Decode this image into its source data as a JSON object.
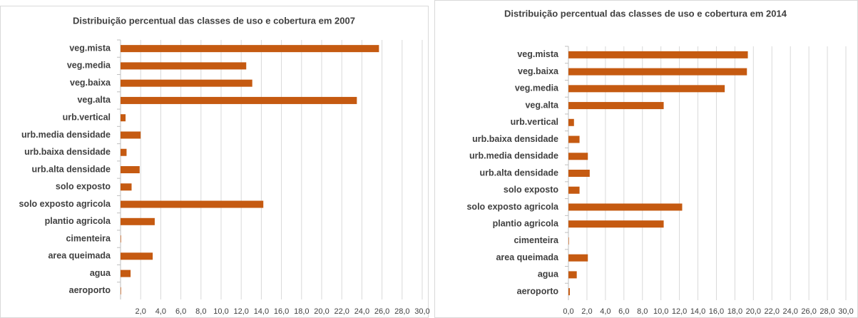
{
  "chart_data": [
    {
      "type": "bar",
      "title": "Distribuição percentual das classes de uso e cobertura em 2007",
      "categories": [
        "veg.mista",
        "veg.media",
        "veg.baixa",
        "veg.alta",
        "urb.vertical",
        "urb.media densidade",
        "urb.baixa densidade",
        "urb.alta densidade",
        "solo exposto",
        "solo exposto agricola",
        "plantio agricola",
        "cimenteira",
        "area queimada",
        "agua",
        "aeroporto"
      ],
      "values": [
        25.7,
        12.5,
        13.1,
        23.5,
        0.5,
        2.0,
        0.6,
        1.9,
        1.1,
        14.2,
        3.4,
        0.05,
        3.2,
        1.0,
        0.05
      ],
      "color": "#c55a11",
      "orientation": "horizontal",
      "grid": true,
      "xlim": [
        0,
        30
      ],
      "xticks": [
        {
          "value": 2,
          "label": "2,0"
        },
        {
          "value": 4,
          "label": "4,0"
        },
        {
          "value": 6,
          "label": "6,0"
        },
        {
          "value": 8,
          "label": "8,0"
        },
        {
          "value": 10,
          "label": "10,0"
        },
        {
          "value": 12,
          "label": "12,0"
        },
        {
          "value": 14,
          "label": "14,0"
        },
        {
          "value": 16,
          "label": "16,0"
        },
        {
          "value": 18,
          "label": "18,0"
        },
        {
          "value": 20,
          "label": "20,0"
        },
        {
          "value": 22,
          "label": "22,0"
        },
        {
          "value": 24,
          "label": "24,0"
        },
        {
          "value": 26,
          "label": "26,0"
        },
        {
          "value": 28,
          "label": "28,0"
        },
        {
          "value": 30,
          "label": "30,0"
        }
      ]
    },
    {
      "type": "bar",
      "title": "Distribuição percentual das classes de uso e cobertura em 2014",
      "categories": [
        "veg.mista",
        "veg.baixa",
        "veg.media",
        "veg.alta",
        "urb.vertical",
        "urb.baixa densidade",
        "urb.media densidade",
        "urb.alta densidade",
        "solo exposto",
        "solo exposto agricola",
        "plantio agricola",
        "cimenteira",
        "area queimada",
        "agua",
        "aeroporto"
      ],
      "values": [
        19.4,
        19.3,
        16.9,
        10.3,
        0.6,
        1.2,
        2.1,
        2.3,
        1.2,
        12.3,
        10.3,
        0.05,
        2.1,
        0.9,
        0.15
      ],
      "color": "#c55a11",
      "orientation": "horizontal",
      "grid": true,
      "xlim": [
        0,
        30
      ],
      "xticks": [
        {
          "value": 0,
          "label": "0,0"
        },
        {
          "value": 2,
          "label": "2,0"
        },
        {
          "value": 4,
          "label": "4,0"
        },
        {
          "value": 6,
          "label": "6,0"
        },
        {
          "value": 8,
          "label": "8,0"
        },
        {
          "value": 10,
          "label": "10,0"
        },
        {
          "value": 12,
          "label": "12,0"
        },
        {
          "value": 14,
          "label": "14,0"
        },
        {
          "value": 16,
          "label": "16,0"
        },
        {
          "value": 18,
          "label": "18,0"
        },
        {
          "value": 20,
          "label": "20,0"
        },
        {
          "value": 22,
          "label": "22,0"
        },
        {
          "value": 24,
          "label": "24,0"
        },
        {
          "value": 26,
          "label": "26,0"
        },
        {
          "value": 28,
          "label": "28,0"
        },
        {
          "value": 30,
          "label": "30,0"
        }
      ]
    }
  ]
}
